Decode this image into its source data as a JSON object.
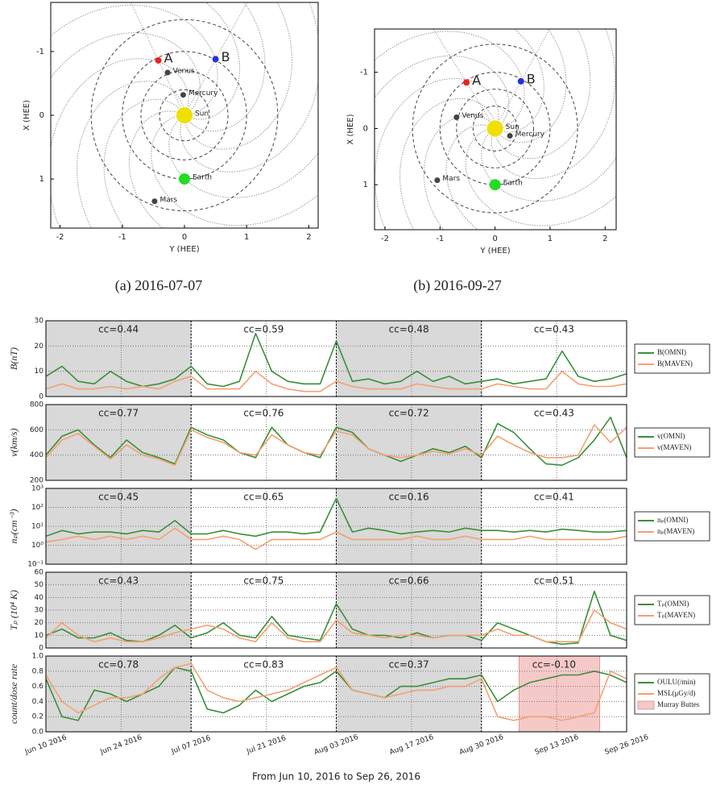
{
  "chart_data": [
    {
      "type": "scatter",
      "caption": "(a) 2016-07-07",
      "x_label": "Y (HEE)",
      "y_label": "X (HEE)",
      "xlim": [
        -2.15,
        2.15
      ],
      "ylim": [
        1.77,
        -1.77
      ],
      "xticks": [
        -2,
        -1,
        0,
        1,
        2
      ],
      "yticks": [
        -1,
        0,
        1
      ],
      "series": [
        {
          "name": "A",
          "color": "#e8231f",
          "x": [
            -0.42
          ],
          "y": [
            -0.86
          ]
        },
        {
          "name": "B",
          "color": "#2233dd",
          "x": [
            0.5
          ],
          "y": [
            -0.88
          ]
        },
        {
          "name": "Venus",
          "color": "#444444",
          "x": [
            -0.27
          ],
          "y": [
            -0.67
          ]
        },
        {
          "name": "Mercury",
          "color": "#444444",
          "x": [
            -0.02
          ],
          "y": [
            -0.32
          ]
        },
        {
          "name": "Sun",
          "color": "#f0e000",
          "x": [
            0
          ],
          "y": [
            0
          ]
        },
        {
          "name": "Earth",
          "color": "#22dd22",
          "x": [
            0
          ],
          "y": [
            1
          ]
        },
        {
          "name": "Mars",
          "color": "#444444",
          "x": [
            -0.48
          ],
          "y": [
            1.35
          ]
        }
      ]
    },
    {
      "type": "scatter",
      "caption": "(b) 2016-09-27",
      "x_label": "Y (HEE)",
      "y_label": "X (HEE)",
      "xlim": [
        -2.19,
        2.2
      ],
      "ylim": [
        1.8,
        -1.77
      ],
      "xticks": [
        -2,
        -1,
        0,
        1,
        2
      ],
      "yticks": [
        -1,
        0,
        1
      ],
      "series": [
        {
          "name": "A",
          "color": "#e8231f",
          "x": [
            -0.52
          ],
          "y": [
            -0.82
          ]
        },
        {
          "name": "B",
          "color": "#2233dd",
          "x": [
            0.47
          ],
          "y": [
            -0.84
          ]
        },
        {
          "name": "Venus",
          "color": "#444444",
          "x": [
            -0.7
          ],
          "y": [
            -0.2
          ]
        },
        {
          "name": "Mercury",
          "color": "#444444",
          "x": [
            0.27
          ],
          "y": [
            0.13
          ]
        },
        {
          "name": "Sun",
          "color": "#f0e000",
          "x": [
            0
          ],
          "y": [
            0
          ]
        },
        {
          "name": "Earth",
          "color": "#22dd22",
          "x": [
            0
          ],
          "y": [
            1
          ]
        },
        {
          "name": "Mars",
          "color": "#444444",
          "x": [
            -1.05
          ],
          "y": [
            0.92
          ]
        }
      ]
    },
    {
      "type": "line",
      "y_label": "B(nT)",
      "ylim": [
        0,
        30
      ],
      "yticks": [
        0,
        10,
        20,
        30
      ],
      "log": false,
      "shaded_periods": [
        [
          "2016-06-10",
          "2016-07-07"
        ],
        [
          "2016-08-03",
          "2016-08-30"
        ]
      ],
      "annotations": [
        "cc=0.44",
        "cc=0.59",
        "cc=0.48",
        "cc=0.43"
      ],
      "x": [
        "2016-06-10",
        "2016-06-13",
        "2016-06-16",
        "2016-06-19",
        "2016-06-22",
        "2016-06-25",
        "2016-06-28",
        "2016-07-01",
        "2016-07-04",
        "2016-07-07",
        "2016-07-10",
        "2016-07-13",
        "2016-07-16",
        "2016-07-19",
        "2016-07-22",
        "2016-07-25",
        "2016-07-28",
        "2016-07-31",
        "2016-08-03",
        "2016-08-06",
        "2016-08-09",
        "2016-08-12",
        "2016-08-15",
        "2016-08-18",
        "2016-08-21",
        "2016-08-24",
        "2016-08-27",
        "2016-08-30",
        "2016-09-02",
        "2016-09-05",
        "2016-09-08",
        "2016-09-11",
        "2016-09-14",
        "2016-09-17",
        "2016-09-20",
        "2016-09-23",
        "2016-09-26"
      ],
      "series": [
        {
          "name": "B(OMNI)",
          "color": "#3a8f3a",
          "values": [
            8,
            12,
            6,
            5,
            10,
            6,
            4,
            5,
            7,
            12,
            5,
            4,
            6,
            25,
            10,
            6,
            5,
            5,
            22,
            6,
            7,
            5,
            6,
            10,
            6,
            8,
            5,
            6,
            7,
            5,
            6,
            7,
            18,
            8,
            6,
            7,
            9
          ]
        },
        {
          "name": "B(MAVEN)",
          "color": "#f4a070",
          "values": [
            3,
            5,
            3,
            3,
            4,
            3,
            4,
            3,
            6,
            8,
            3,
            3,
            3,
            10,
            5,
            3,
            2,
            2,
            6,
            4,
            3,
            3,
            3,
            5,
            4,
            3,
            3,
            3,
            5,
            4,
            3,
            3,
            10,
            5,
            4,
            4,
            5
          ]
        }
      ]
    },
    {
      "type": "line",
      "y_label": "v(km/s)",
      "ylim": [
        200,
        800
      ],
      "yticks": [
        200,
        400,
        600,
        800
      ],
      "log": false,
      "shaded_periods": [
        [
          "2016-06-10",
          "2016-07-07"
        ],
        [
          "2016-08-03",
          "2016-08-30"
        ]
      ],
      "annotations": [
        "cc=0.77",
        "cc=0.76",
        "cc=0.72",
        "cc=0.43"
      ],
      "x": [
        "2016-06-10",
        "2016-06-13",
        "2016-06-16",
        "2016-06-19",
        "2016-06-22",
        "2016-06-25",
        "2016-06-28",
        "2016-07-01",
        "2016-07-04",
        "2016-07-07",
        "2016-07-10",
        "2016-07-13",
        "2016-07-16",
        "2016-07-19",
        "2016-07-22",
        "2016-07-25",
        "2016-07-28",
        "2016-07-31",
        "2016-08-03",
        "2016-08-06",
        "2016-08-09",
        "2016-08-12",
        "2016-08-15",
        "2016-08-18",
        "2016-08-21",
        "2016-08-24",
        "2016-08-27",
        "2016-08-30",
        "2016-09-02",
        "2016-09-05",
        "2016-09-08",
        "2016-09-11",
        "2016-09-14",
        "2016-09-17",
        "2016-09-20",
        "2016-09-23",
        "2016-09-26"
      ],
      "series": [
        {
          "name": "v(OMNI)",
          "color": "#3a8f3a",
          "values": [
            400,
            550,
            600,
            480,
            380,
            520,
            420,
            380,
            330,
            620,
            560,
            520,
            420,
            380,
            620,
            480,
            420,
            380,
            620,
            580,
            450,
            400,
            350,
            400,
            450,
            420,
            470,
            380,
            650,
            580,
            450,
            330,
            320,
            380,
            520,
            700,
            380
          ]
        },
        {
          "name": "v(MAVEN)",
          "color": "#f4a070",
          "values": [
            380,
            520,
            570,
            470,
            370,
            480,
            400,
            370,
            320,
            600,
            540,
            500,
            420,
            400,
            560,
            480,
            420,
            400,
            590,
            560,
            450,
            400,
            380,
            400,
            430,
            410,
            450,
            400,
            550,
            480,
            420,
            380,
            380,
            400,
            640,
            500,
            620
          ]
        }
      ]
    },
    {
      "type": "line",
      "y_label": "nₚ(cm⁻³)",
      "ylim": [
        0.1,
        1000
      ],
      "log": true,
      "yticks": [
        {
          "value": 0.1,
          "label": "10⁻¹"
        },
        {
          "value": 1,
          "label": "10⁰"
        },
        {
          "value": 10,
          "label": "10¹"
        },
        {
          "value": 100,
          "label": "10²"
        },
        {
          "value": 1000,
          "label": "10³"
        }
      ],
      "shaded_periods": [
        [
          "2016-06-10",
          "2016-07-07"
        ],
        [
          "2016-08-03",
          "2016-08-30"
        ]
      ],
      "annotations": [
        "cc=0.45",
        "cc=0.65",
        "cc=0.16",
        "cc=0.41"
      ],
      "x": [
        "2016-06-10",
        "2016-06-13",
        "2016-06-16",
        "2016-06-19",
        "2016-06-22",
        "2016-06-25",
        "2016-06-28",
        "2016-07-01",
        "2016-07-04",
        "2016-07-07",
        "2016-07-10",
        "2016-07-13",
        "2016-07-16",
        "2016-07-19",
        "2016-07-22",
        "2016-07-25",
        "2016-07-28",
        "2016-07-31",
        "2016-08-03",
        "2016-08-06",
        "2016-08-09",
        "2016-08-12",
        "2016-08-15",
        "2016-08-18",
        "2016-08-21",
        "2016-08-24",
        "2016-08-27",
        "2016-08-30",
        "2016-09-02",
        "2016-09-05",
        "2016-09-08",
        "2016-09-11",
        "2016-09-14",
        "2016-09-17",
        "2016-09-20",
        "2016-09-23",
        "2016-09-26"
      ],
      "series": [
        {
          "name": "nₚ(OMNI)",
          "color": "#3a8f3a",
          "values": [
            3,
            6,
            4,
            5,
            5,
            4,
            6,
            5,
            20,
            4,
            4,
            6,
            4,
            3,
            5,
            5,
            4,
            5,
            300,
            5,
            8,
            6,
            4,
            5,
            6,
            5,
            8,
            6,
            6,
            5,
            6,
            5,
            7,
            6,
            5,
            5,
            6
          ]
        },
        {
          "name": "nₚ(MAVEN)",
          "color": "#f4a070",
          "values": [
            1.5,
            2,
            3,
            2,
            3,
            2,
            3,
            2,
            8,
            2,
            2,
            3,
            2,
            0.6,
            2,
            2,
            2,
            2,
            5,
            2,
            2,
            2,
            2,
            3,
            2,
            2,
            3,
            2,
            2,
            2,
            3,
            2,
            2,
            2,
            2,
            2,
            3
          ]
        }
      ]
    },
    {
      "type": "line",
      "y_label": "Tₚ (10⁴ K)",
      "ylim": [
        0,
        60
      ],
      "yticks": [
        0,
        10,
        20,
        30,
        40,
        50,
        60
      ],
      "log": false,
      "shaded_periods": [
        [
          "2016-06-10",
          "2016-07-07"
        ],
        [
          "2016-08-03",
          "2016-08-30"
        ]
      ],
      "annotations": [
        "cc=0.43",
        "cc=0.75",
        "cc=0.66",
        "cc=0.51"
      ],
      "x": [
        "2016-06-10",
        "2016-06-13",
        "2016-06-16",
        "2016-06-19",
        "2016-06-22",
        "2016-06-25",
        "2016-06-28",
        "2016-07-01",
        "2016-07-04",
        "2016-07-07",
        "2016-07-10",
        "2016-07-13",
        "2016-07-16",
        "2016-07-19",
        "2016-07-22",
        "2016-07-25",
        "2016-07-28",
        "2016-07-31",
        "2016-08-03",
        "2016-08-06",
        "2016-08-09",
        "2016-08-12",
        "2016-08-15",
        "2016-08-18",
        "2016-08-21",
        "2016-08-24",
        "2016-08-27",
        "2016-08-30",
        "2016-09-02",
        "2016-09-05",
        "2016-09-08",
        "2016-09-11",
        "2016-09-14",
        "2016-09-17",
        "2016-09-20",
        "2016-09-23",
        "2016-09-26"
      ],
      "series": [
        {
          "name": "Tₚ(OMNI)",
          "color": "#3a8f3a",
          "values": [
            10,
            15,
            8,
            8,
            12,
            6,
            5,
            10,
            18,
            8,
            12,
            20,
            10,
            8,
            25,
            10,
            8,
            6,
            35,
            15,
            10,
            10,
            8,
            12,
            8,
            10,
            10,
            6,
            20,
            15,
            10,
            5,
            3,
            4,
            45,
            10,
            6
          ]
        },
        {
          "name": "Tₚ(MAVEN)",
          "color": "#f4a070",
          "values": [
            8,
            20,
            10,
            5,
            8,
            5,
            5,
            8,
            12,
            15,
            18,
            15,
            8,
            5,
            20,
            8,
            5,
            5,
            22,
            12,
            10,
            8,
            10,
            10,
            8,
            10,
            10,
            10,
            15,
            10,
            10,
            5,
            5,
            5,
            30,
            20,
            15
          ]
        }
      ]
    },
    {
      "type": "line",
      "y_label": "count/dose rate",
      "ylim": [
        0,
        1
      ],
      "yticks": [
        {
          "value": 0,
          "label": "0.0"
        },
        0.2,
        0.4,
        0.6,
        0.8,
        {
          "value": 1,
          "label": "1.0"
        }
      ],
      "log": false,
      "shaded_periods": [
        [
          "2016-06-10",
          "2016-07-07"
        ],
        [
          "2016-08-03",
          "2016-08-30"
        ]
      ],
      "annotations": [
        "cc=0.78",
        "cc=0.83",
        "cc=0.37",
        "cc=-0.10"
      ],
      "spans": [
        {
          "name": "Murray Buttes",
          "start": "2016-09-06",
          "end": "2016-09-21",
          "color": "#f6c9c9"
        }
      ],
      "xlim": [
        "2016-06-10",
        "2016-09-26"
      ],
      "xticks": [
        {
          "value": "2016-06-10",
          "label": "Jun 10 2016"
        },
        {
          "value": "2016-06-24",
          "label": "Jun 24 2016"
        },
        {
          "value": "2016-07-07",
          "label": "Jul 07 2016"
        },
        {
          "value": "2016-07-21",
          "label": "Jul 21 2016"
        },
        {
          "value": "2016-08-03",
          "label": "Aug 03 2016"
        },
        {
          "value": "2016-08-17",
          "label": "Aug 17 2016"
        },
        {
          "value": "2016-08-30",
          "label": "Aug 30 2016"
        },
        {
          "value": "2016-09-13",
          "label": "Sep 13 2016"
        },
        {
          "value": "2016-09-26",
          "label": "Sep 26 2016"
        }
      ],
      "x_label": "From Jun 10, 2016 to Sep 26, 2016",
      "x": [
        "2016-06-10",
        "2016-06-13",
        "2016-06-16",
        "2016-06-19",
        "2016-06-22",
        "2016-06-25",
        "2016-06-28",
        "2016-07-01",
        "2016-07-04",
        "2016-07-07",
        "2016-07-10",
        "2016-07-13",
        "2016-07-16",
        "2016-07-19",
        "2016-07-22",
        "2016-07-25",
        "2016-07-28",
        "2016-07-31",
        "2016-08-03",
        "2016-08-06",
        "2016-08-09",
        "2016-08-12",
        "2016-08-15",
        "2016-08-18",
        "2016-08-21",
        "2016-08-24",
        "2016-08-27",
        "2016-08-30",
        "2016-09-02",
        "2016-09-05",
        "2016-09-08",
        "2016-09-11",
        "2016-09-14",
        "2016-09-17",
        "2016-09-20",
        "2016-09-23",
        "2016-09-26"
      ],
      "series": [
        {
          "name": "OULU(/min)",
          "color": "#3a8f3a",
          "values": [
            0.7,
            0.2,
            0.15,
            0.55,
            0.5,
            0.4,
            0.5,
            0.6,
            0.85,
            0.8,
            0.3,
            0.25,
            0.35,
            0.55,
            0.4,
            0.5,
            0.6,
            0.65,
            0.8,
            0.55,
            0.5,
            0.45,
            0.6,
            0.6,
            0.65,
            0.7,
            0.7,
            0.75,
            0.4,
            0.55,
            0.65,
            0.7,
            0.75,
            0.75,
            0.8,
            0.75,
            0.65
          ]
        },
        {
          "name": "MSL(μGy/d)",
          "color": "#f4a070",
          "values": [
            0.75,
            0.4,
            0.25,
            0.35,
            0.45,
            0.45,
            0.5,
            0.7,
            0.85,
            0.9,
            0.55,
            0.45,
            0.4,
            0.45,
            0.5,
            0.55,
            0.65,
            0.75,
            0.85,
            0.55,
            0.5,
            0.45,
            0.5,
            0.55,
            0.55,
            0.6,
            0.6,
            0.7,
            0.2,
            0.15,
            0.2,
            0.2,
            0.15,
            0.2,
            0.25,
            0.8,
            0.7
          ]
        }
      ]
    }
  ]
}
